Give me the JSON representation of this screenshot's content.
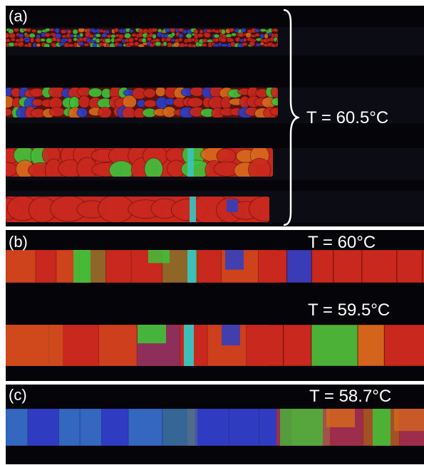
{
  "panels": {
    "a": {
      "label": "(a)",
      "temperature": "T = 60.5°C"
    },
    "b": {
      "label": "(b)",
      "temperature_top": "T = 60°C",
      "temperature_bottom": "T = 59.5°C"
    },
    "c": {
      "label": "(c)",
      "temperature": "T = 58.7°C"
    }
  },
  "colors": {
    "background": "#050509",
    "red_domain": "#c8281e",
    "orange_domain": "#d66a1c",
    "green_domain": "#3ec23a",
    "blue_domain": "#2a3ec8",
    "cyan_domain": "#38c6c2",
    "label_text": "#ffffff"
  }
}
